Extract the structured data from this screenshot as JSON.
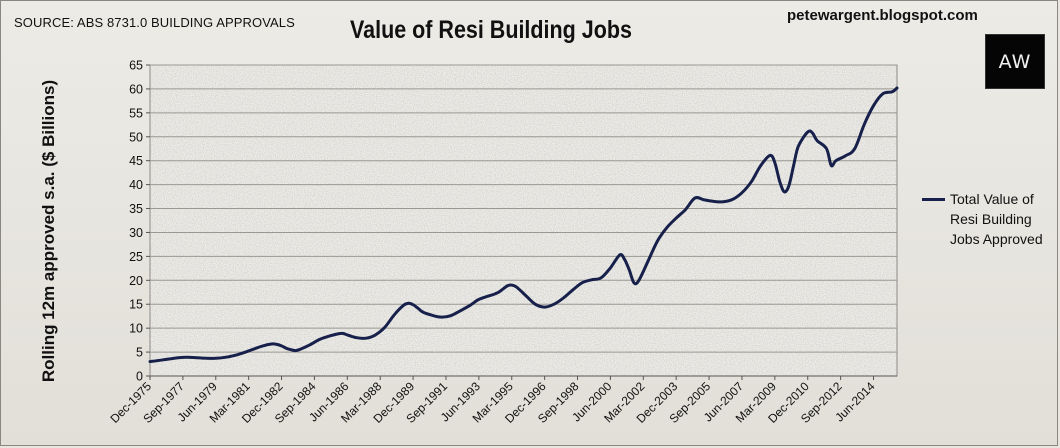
{
  "source": "SOURCE: ABS 8731.0 BUILDING APPROVALS",
  "blog": "petewargent.blogspot.com",
  "logo_text": "AW",
  "chart_data": {
    "type": "line",
    "title": "Value of Resi Building Jobs",
    "ylabel": "Rolling 12m approved s.a. ($ Billions)",
    "xlabel": "",
    "ylim": [
      0,
      65
    ],
    "yticks": [
      0,
      5,
      10,
      15,
      20,
      25,
      30,
      35,
      40,
      45,
      50,
      55,
      60,
      65
    ],
    "xlim": [
      "Dec-1975",
      "Sep-2014"
    ],
    "xticks": [
      "Dec-1975",
      "Sep-1977",
      "Jun-1979",
      "Mar-1981",
      "Dec-1982",
      "Sep-1984",
      "Jun-1986",
      "Mar-1988",
      "Dec-1989",
      "Sep-1991",
      "Jun-1993",
      "Mar-1995",
      "Dec-1996",
      "Sep-1998",
      "Jun-2000",
      "Mar-2002",
      "Dec-2003",
      "Sep-2005",
      "Jun-2007",
      "Mar-2009",
      "Dec-2010",
      "Sep-2012",
      "Jun-2014"
    ],
    "grid": true,
    "legend_position": "right",
    "line_color": "#16204a",
    "series": [
      {
        "name": "Total Value of Resi Building Jobs Approved",
        "points": [
          [
            "Dec-1975",
            3.0
          ],
          [
            "Sep-1976",
            3.4
          ],
          [
            "Jun-1977",
            3.8
          ],
          [
            "Dec-1977",
            3.9
          ],
          [
            "Jun-1978",
            3.8
          ],
          [
            "Dec-1978",
            3.7
          ],
          [
            "Jun-1979",
            3.7
          ],
          [
            "Dec-1979",
            3.9
          ],
          [
            "Jun-1980",
            4.3
          ],
          [
            "Dec-1980",
            4.9
          ],
          [
            "Jun-1981",
            5.6
          ],
          [
            "Dec-1981",
            6.3
          ],
          [
            "Jun-1982",
            6.7
          ],
          [
            "Sep-1982",
            6.6
          ],
          [
            "Dec-1982",
            6.3
          ],
          [
            "Mar-1983",
            5.8
          ],
          [
            "Jun-1983",
            5.5
          ],
          [
            "Sep-1983",
            5.3
          ],
          [
            "Dec-1983",
            5.6
          ],
          [
            "Jun-1984",
            6.5
          ],
          [
            "Dec-1984",
            7.6
          ],
          [
            "Jun-1985",
            8.3
          ],
          [
            "Dec-1985",
            8.8
          ],
          [
            "Mar-1986",
            8.9
          ],
          [
            "Jun-1986",
            8.6
          ],
          [
            "Dec-1986",
            8.0
          ],
          [
            "Jun-1987",
            7.9
          ],
          [
            "Dec-1987",
            8.6
          ],
          [
            "Jun-1988",
            10.2
          ],
          [
            "Dec-1988",
            12.8
          ],
          [
            "Jun-1989",
            14.8
          ],
          [
            "Sep-1989",
            15.2
          ],
          [
            "Dec-1989",
            14.9
          ],
          [
            "Mar-1990",
            14.2
          ],
          [
            "Jun-1990",
            13.4
          ],
          [
            "Dec-1990",
            12.7
          ],
          [
            "Jun-1991",
            12.3
          ],
          [
            "Dec-1991",
            12.6
          ],
          [
            "Jun-1992",
            13.6
          ],
          [
            "Dec-1992",
            14.7
          ],
          [
            "Jun-1993",
            16.0
          ],
          [
            "Dec-1993",
            16.7
          ],
          [
            "Jun-1994",
            17.4
          ],
          [
            "Dec-1994",
            18.8
          ],
          [
            "Mar-1995",
            19.0
          ],
          [
            "Jun-1995",
            18.6
          ],
          [
            "Dec-1995",
            16.8
          ],
          [
            "Jun-1996",
            15.0
          ],
          [
            "Dec-1996",
            14.4
          ],
          [
            "Jun-1997",
            15.0
          ],
          [
            "Dec-1997",
            16.3
          ],
          [
            "Jun-1998",
            18.0
          ],
          [
            "Dec-1998",
            19.5
          ],
          [
            "Jun-1999",
            20.1
          ],
          [
            "Dec-1999",
            20.5
          ],
          [
            "Jun-2000",
            22.6
          ],
          [
            "Dec-2000",
            25.3
          ],
          [
            "Mar-2001",
            24.4
          ],
          [
            "Jun-2001",
            22.2
          ],
          [
            "Sep-2001",
            19.5
          ],
          [
            "Dec-2001",
            19.9
          ],
          [
            "Jun-2002",
            24.0
          ],
          [
            "Dec-2002",
            28.2
          ],
          [
            "Jun-2003",
            31.0
          ],
          [
            "Dec-2003",
            33.0
          ],
          [
            "Jun-2004",
            34.8
          ],
          [
            "Dec-2004",
            37.2
          ],
          [
            "Jun-2005",
            36.8
          ],
          [
            "Dec-2005",
            36.5
          ],
          [
            "Jun-2006",
            36.4
          ],
          [
            "Dec-2006",
            36.9
          ],
          [
            "Jun-2007",
            38.3
          ],
          [
            "Dec-2007",
            40.6
          ],
          [
            "Jun-2008",
            44.0
          ],
          [
            "Dec-2008",
            46.1
          ],
          [
            "Mar-2009",
            44.6
          ],
          [
            "Jun-2009",
            40.8
          ],
          [
            "Sep-2009",
            38.5
          ],
          [
            "Dec-2009",
            39.8
          ],
          [
            "Mar-2010",
            44.0
          ],
          [
            "Jun-2010",
            48.0
          ],
          [
            "Dec-2010",
            51.0
          ],
          [
            "Mar-2011",
            50.8
          ],
          [
            "Jun-2011",
            49.2
          ],
          [
            "Dec-2011",
            47.5
          ],
          [
            "Mar-2012",
            44.0
          ],
          [
            "Jun-2012",
            45.0
          ],
          [
            "Dec-2012",
            46.0
          ],
          [
            "Jun-2013",
            47.5
          ],
          [
            "Dec-2013",
            52.5
          ],
          [
            "Jun-2014",
            56.5
          ],
          [
            "Dec-2014",
            59.0
          ],
          [
            "Jun-2015",
            59.4
          ],
          [
            "Sep-2015",
            60.2
          ]
        ]
      }
    ]
  }
}
